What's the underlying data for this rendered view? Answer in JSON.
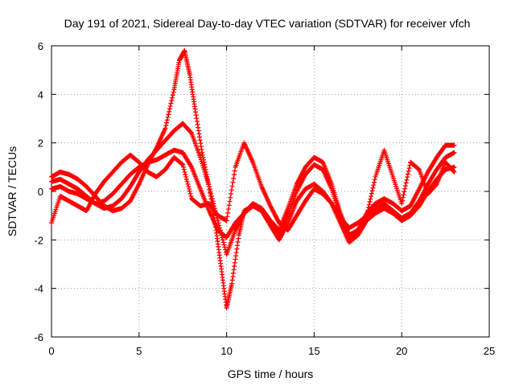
{
  "chart_data": {
    "type": "scatter",
    "title": "Day 191 of 2021, Sidereal Day-to-day VTEC variation (SDTVAR) for receiver vfch",
    "xlabel": "GPS time / hours",
    "ylabel": "SDTVAR / TECUs",
    "xlim": [
      0,
      25
    ],
    "ylim": [
      -6,
      6
    ],
    "xticks": [
      0,
      5,
      10,
      15,
      20,
      25
    ],
    "yticks": [
      -6,
      -4,
      -2,
      0,
      2,
      4,
      6
    ],
    "grid": true,
    "marker": "+",
    "color": "#ff0000",
    "series": [
      {
        "name": "track-a",
        "x": [
          0.0,
          0.5,
          1.0,
          1.5,
          2.0,
          2.5,
          3.0,
          3.5,
          4.0,
          4.5,
          5.0,
          5.5,
          6.0,
          6.5,
          7.0,
          7.3,
          7.6,
          7.9,
          8.2,
          8.6,
          9.0,
          9.4,
          9.7,
          10.0,
          10.3,
          10.7,
          11.0,
          11.5,
          12.0,
          12.5,
          13.0,
          13.5,
          14.0,
          14.5,
          15.0,
          15.5,
          16.0,
          16.5,
          17.0,
          17.5,
          18.0,
          18.5,
          19.0,
          19.5,
          20.0,
          20.5,
          21.0,
          21.5,
          22.0,
          22.5,
          23.0
        ],
        "y": [
          0.6,
          0.8,
          0.7,
          0.5,
          0.2,
          -0.2,
          -0.6,
          -0.8,
          -0.7,
          -0.4,
          0.3,
          1.1,
          1.8,
          2.6,
          4.2,
          5.4,
          5.8,
          4.8,
          3.4,
          1.6,
          0.2,
          -1.6,
          -3.2,
          -4.8,
          -3.8,
          -1.8,
          -0.8,
          -0.6,
          -0.7,
          -1.2,
          -1.6,
          -0.7,
          0.3,
          1.0,
          1.4,
          1.2,
          0.3,
          -0.9,
          -1.8,
          -1.6,
          -0.9,
          -0.5,
          -0.3,
          -0.5,
          -0.8,
          -0.6,
          0.1,
          0.8,
          1.4,
          1.9,
          1.9
        ]
      },
      {
        "name": "track-b",
        "x": [
          0.0,
          0.5,
          1.0,
          1.5,
          2.0,
          2.5,
          3.0,
          3.5,
          4.0,
          4.5,
          5.0,
          5.5,
          6.0,
          6.5,
          7.0,
          7.5,
          8.0,
          8.5,
          9.0,
          9.5,
          10.0,
          10.5,
          11.0,
          11.5,
          12.0,
          12.5,
          13.0,
          13.5,
          14.0,
          14.5,
          15.0,
          15.5,
          16.0,
          16.5,
          17.0,
          17.5,
          18.0,
          18.5,
          19.0,
          19.5,
          20.0,
          20.5,
          21.0,
          21.5,
          22.0,
          22.5,
          23.0
        ],
        "y": [
          0.4,
          0.5,
          0.3,
          0.1,
          -0.2,
          -0.5,
          -0.7,
          -0.6,
          -0.3,
          0.2,
          0.8,
          1.3,
          1.7,
          2.1,
          2.5,
          2.8,
          2.4,
          1.4,
          0.2,
          -1.2,
          -2.6,
          -1.6,
          -0.9,
          -0.5,
          -0.7,
          -1.3,
          -1.8,
          -1.0,
          0.0,
          0.7,
          1.1,
          0.9,
          0.1,
          -1.0,
          -1.9,
          -1.7,
          -1.1,
          -0.7,
          -0.5,
          -0.8,
          -1.1,
          -0.9,
          -0.4,
          0.3,
          0.9,
          1.4,
          1.6
        ]
      },
      {
        "name": "track-c",
        "x": [
          0.0,
          0.5,
          1.0,
          1.5,
          2.0,
          2.5,
          3.0,
          3.5,
          4.0,
          4.5,
          5.0,
          5.5,
          6.0,
          6.5,
          7.0,
          7.5,
          8.0,
          8.5,
          9.0,
          9.5,
          10.0,
          10.5,
          11.0,
          11.5,
          12.0,
          12.5,
          13.0,
          13.5,
          14.0,
          14.5,
          15.0,
          15.5,
          16.0,
          16.5,
          17.0,
          17.5,
          18.0,
          18.5,
          19.0,
          19.5,
          20.0,
          20.5,
          21.0,
          21.5,
          22.0,
          22.5,
          23.0
        ],
        "y": [
          0.1,
          0.2,
          0.0,
          -0.1,
          -0.3,
          -0.5,
          -0.4,
          -0.1,
          0.3,
          0.7,
          1.0,
          1.2,
          1.3,
          1.5,
          1.7,
          1.6,
          1.0,
          0.1,
          -0.8,
          -1.6,
          -1.9,
          -1.3,
          -0.9,
          -0.6,
          -0.8,
          -1.4,
          -2.0,
          -1.3,
          -0.4,
          0.1,
          0.3,
          0.0,
          -0.5,
          -1.3,
          -2.1,
          -1.8,
          -1.2,
          -0.9,
          -0.7,
          -0.9,
          -1.2,
          -1.0,
          -0.6,
          0.0,
          0.5,
          0.9,
          1.0
        ]
      },
      {
        "name": "track-d",
        "x": [
          0.0,
          0.5,
          1.0,
          1.5,
          2.0,
          2.5,
          3.0,
          3.5,
          4.0,
          4.5,
          5.0,
          5.5,
          6.0,
          6.5,
          7.0,
          7.5,
          8.0,
          8.5,
          9.0,
          9.5,
          10.0,
          10.5,
          11.0,
          11.5,
          12.0,
          12.5,
          13.0,
          13.5,
          14.0,
          14.5,
          15.0,
          15.5,
          16.0,
          16.5,
          17.0,
          17.5,
          18.0,
          18.5,
          19.0,
          19.5,
          20.0,
          20.5,
          21.0,
          21.5,
          22.0,
          22.5,
          23.0
        ],
        "y": [
          -1.3,
          -0.2,
          -0.4,
          -0.6,
          -0.8,
          -0.1,
          0.4,
          0.8,
          1.2,
          1.5,
          1.2,
          0.8,
          0.6,
          0.9,
          1.4,
          1.1,
          -0.3,
          -0.6,
          -0.5,
          -1.0,
          -1.2,
          1.0,
          2.0,
          1.2,
          0.2,
          -0.6,
          -1.3,
          -1.6,
          -1.0,
          -0.4,
          0.1,
          -0.1,
          -0.5,
          -1.1,
          -1.5,
          -1.3,
          -1.0,
          0.6,
          1.7,
          0.6,
          -0.5,
          1.2,
          0.9,
          -0.1,
          0.3,
          1.2,
          0.8
        ]
      }
    ]
  }
}
